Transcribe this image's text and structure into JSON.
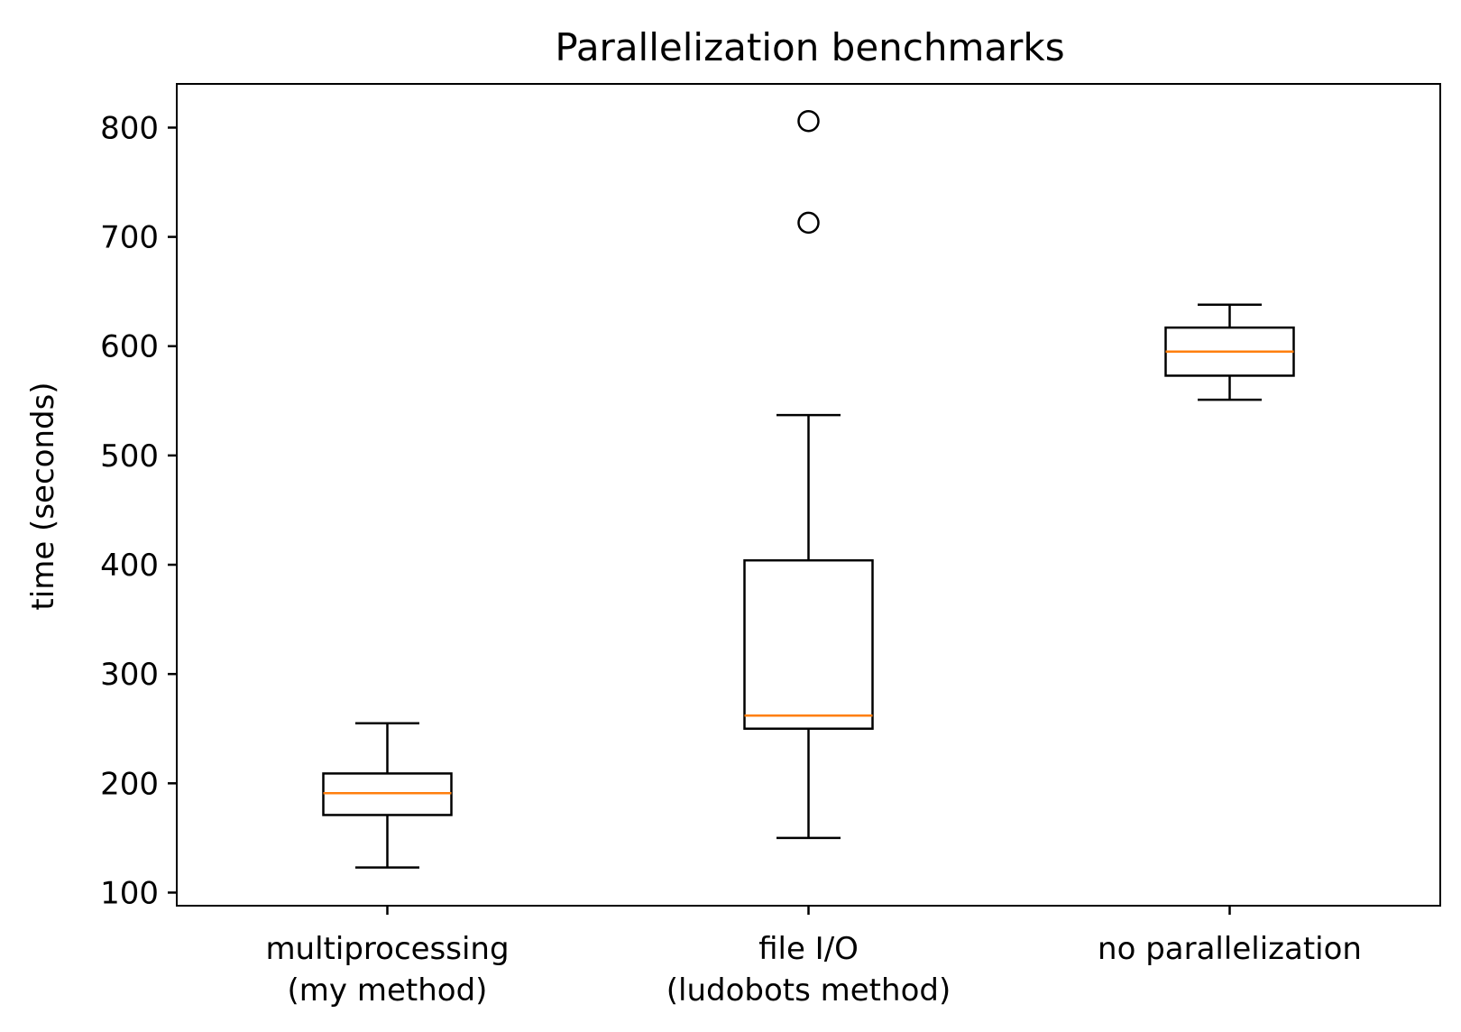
{
  "chart_data": {
    "type": "boxplot",
    "title": "Parallelization benchmarks",
    "xlabel": "",
    "ylabel": "time (seconds)",
    "ylim": [
      88,
      840
    ],
    "yticks": [
      100,
      200,
      300,
      400,
      500,
      600,
      700,
      800
    ],
    "grid": false,
    "categories": [
      {
        "lines": [
          "multiprocessing",
          "(my method)"
        ]
      },
      {
        "lines": [
          "file I/O",
          "(ludobots method)"
        ]
      },
      {
        "lines": [
          "no parallelization"
        ]
      }
    ],
    "boxes": [
      {
        "whisker_low": 123,
        "q1": 171,
        "median": 191,
        "q3": 209,
        "whisker_high": 255,
        "outliers": []
      },
      {
        "whisker_low": 150,
        "q1": 250,
        "median": 262,
        "q3": 404,
        "whisker_high": 537,
        "outliers": [
          713,
          806
        ]
      },
      {
        "whisker_low": 551,
        "q1": 573,
        "median": 595,
        "q3": 617,
        "whisker_high": 638,
        "outliers": []
      }
    ],
    "colors": {
      "box": "#000000",
      "median": "#ff7f0e",
      "outlier": "#000000"
    }
  }
}
